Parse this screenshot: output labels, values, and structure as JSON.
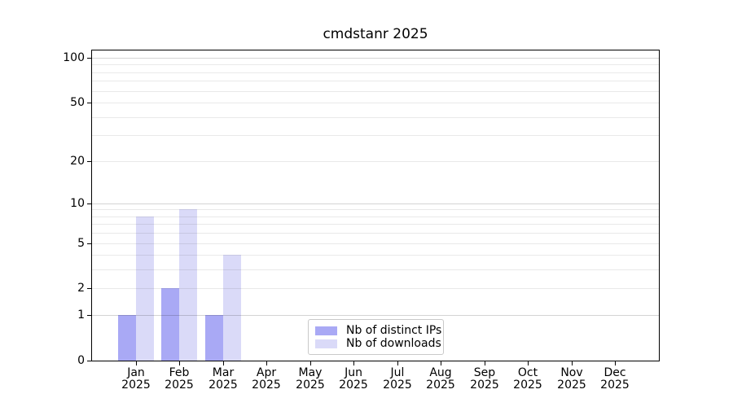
{
  "chart_data": {
    "type": "bar",
    "title": "cmdstanr 2025",
    "categories": [
      "Jan",
      "Feb",
      "Mar",
      "Apr",
      "May",
      "Jun",
      "Jul",
      "Aug",
      "Sep",
      "Oct",
      "Nov",
      "Dec"
    ],
    "category_year": "2025",
    "series": [
      {
        "name": "Nb of distinct IPs",
        "color": "#a9a9f5",
        "values": [
          1,
          2,
          1,
          0,
          0,
          0,
          0,
          0,
          0,
          0,
          0,
          0
        ]
      },
      {
        "name": "Nb of downloads",
        "color": "#dadaf8",
        "values": [
          8,
          9,
          4,
          0,
          0,
          0,
          0,
          0,
          0,
          0,
          0,
          0
        ]
      }
    ],
    "xlabel": "",
    "ylabel": "",
    "yscale": "log1p",
    "ylim": [
      0,
      112
    ],
    "yticks": [
      0,
      1,
      2,
      5,
      10,
      20,
      50,
      100
    ],
    "ytick_labels": [
      "0",
      "1",
      "2",
      "5",
      "10",
      "20",
      "50",
      "100"
    ],
    "gridline_values": [
      1,
      2,
      3,
      4,
      5,
      6,
      7,
      8,
      9,
      10,
      20,
      30,
      40,
      50,
      60,
      70,
      80,
      90,
      100
    ],
    "emphasized_gridlines": [
      1,
      10,
      100
    ],
    "grid": "horizontal, drawn over bars",
    "legend_position": "lower center",
    "colors": {
      "minor_grid": "rgba(0,0,0,0.085)",
      "major_grid": "rgba(0,0,0,0.17)",
      "axis": "#000000",
      "background": "#ffffff",
      "text": "#000000"
    }
  }
}
